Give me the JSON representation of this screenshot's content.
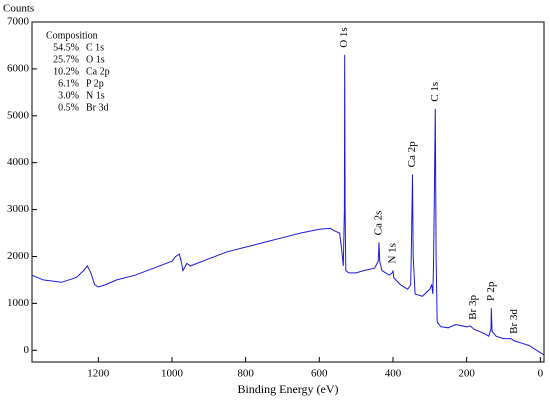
{
  "chart_data": {
    "type": "line",
    "y_label": "Counts",
    "x_label": "Binding Energy (eV)",
    "color": "#1a1ad8",
    "xlim": [
      1380,
      -10
    ],
    "ylim": [
      -250,
      7000
    ],
    "xticks": [
      1200,
      1000,
      800,
      600,
      400,
      200,
      0
    ],
    "yticks": [
      0,
      1000,
      2000,
      3000,
      4000,
      5000,
      6000,
      7000
    ],
    "x": [
      1380,
      1350,
      1300,
      1260,
      1240,
      1230,
      1220,
      1210,
      1200,
      1180,
      1150,
      1100,
      1050,
      1000,
      990,
      980,
      975,
      970,
      960,
      950,
      900,
      850,
      800,
      750,
      700,
      650,
      600,
      570,
      560,
      545,
      540,
      535,
      532,
      531,
      530,
      528,
      520,
      500,
      480,
      450,
      440,
      438,
      436,
      430,
      410,
      402,
      400,
      398,
      380,
      360,
      352,
      350,
      347,
      345,
      340,
      320,
      300,
      295,
      292,
      290,
      288,
      285,
      283,
      280,
      270,
      250,
      230,
      200,
      190,
      180,
      150,
      140,
      134,
      133,
      131,
      120,
      100,
      80,
      70,
      50,
      30,
      10,
      0,
      -10
    ],
    "values": [
      1600,
      1500,
      1450,
      1550,
      1700,
      1800,
      1650,
      1400,
      1350,
      1400,
      1500,
      1600,
      1750,
      1900,
      2000,
      2050,
      1900,
      1700,
      1850,
      1800,
      1950,
      2100,
      2200,
      2300,
      2400,
      2500,
      2580,
      2600,
      2550,
      2500,
      2200,
      1800,
      3000,
      6300,
      3000,
      1700,
      1650,
      1650,
      1700,
      1750,
      1900,
      2300,
      1900,
      1700,
      1600,
      1650,
      1700,
      1550,
      1400,
      1300,
      1400,
      2200,
      3750,
      2000,
      1200,
      1150,
      1300,
      1400,
      1200,
      1800,
      3000,
      5150,
      2000,
      600,
      500,
      480,
      550,
      500,
      520,
      450,
      350,
      300,
      450,
      900,
      400,
      300,
      250,
      250,
      200,
      150,
      100,
      0,
      -50,
      -100
    ],
    "annotations": [
      {
        "text": "O 1s",
        "x": 531,
        "y": 6450
      },
      {
        "text": "C 1s",
        "x": 285,
        "y": 5300
      },
      {
        "text": "Ca 2p",
        "x": 347,
        "y": 3900
      },
      {
        "text": "Ca 2s",
        "x": 438,
        "y": 2450
      },
      {
        "text": "N 1s",
        "x": 400,
        "y": 1850
      },
      {
        "text": "Br 3p",
        "x": 182,
        "y": 650
      },
      {
        "text": "P 2p",
        "x": 133,
        "y": 1050
      },
      {
        "text": "Br 3d",
        "x": 70,
        "y": 350
      }
    ],
    "composition": {
      "title": "Composition",
      "rows": [
        [
          "54.5%",
          "C 1s"
        ],
        [
          "25.7%",
          "O 1s"
        ],
        [
          "10.2%",
          "Ca 2p"
        ],
        [
          "6.1%",
          "P 2p"
        ],
        [
          "3.0%",
          "N 1s"
        ],
        [
          "0.5%",
          "Br 3d"
        ]
      ]
    }
  }
}
